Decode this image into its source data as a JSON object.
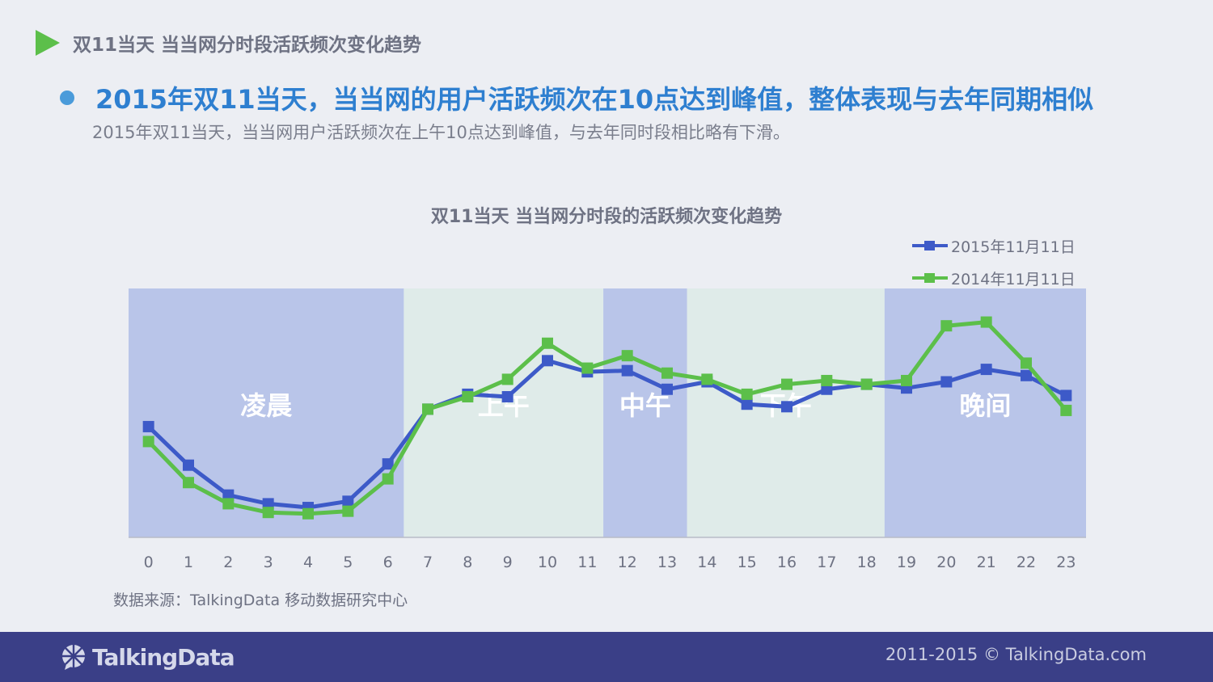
{
  "header": {
    "title": "双11当天 当当网分时段活跃频次变化趋势"
  },
  "headline": "2015年双11当天，当当网的用户活跃频次在10点达到峰值，整体表现与去年同期相似",
  "subline": "2015年双11当天，当当网用户活跃频次在上午10点达到峰值，与去年同时段相比略有下滑。",
  "source": "数据来源：TalkingData 移动数据研究中心",
  "footer": {
    "logo": "TalkingData",
    "copyright": "2011-2015 © TalkingData.com"
  },
  "colors": {
    "series_2015": "#3D5AC8",
    "series_2014": "#5CBF4A",
    "band_dark": "#B9C5E9",
    "band_light": "#DFEBE9",
    "accent": "#2E7FD0"
  },
  "chart_data": {
    "type": "line",
    "title": "双11当天 当当网分时段的活跃频次变化趋势",
    "xlabel": "",
    "ylabel": "",
    "x": [
      0,
      1,
      2,
      3,
      4,
      5,
      6,
      7,
      8,
      9,
      10,
      11,
      12,
      13,
      14,
      15,
      16,
      17,
      18,
      19,
      20,
      21,
      22,
      23
    ],
    "ylim": [
      0,
      100
    ],
    "series": [
      {
        "name": "2015年11月11日",
        "color": "#3D5AC8",
        "values": [
          44.5,
          29,
          17,
          13.5,
          12,
          14.5,
          29.5,
          51.5,
          57.5,
          56.5,
          71,
          66.5,
          67,
          59.5,
          62.5,
          53.5,
          52.5,
          59.5,
          61.5,
          60,
          62.5,
          67.5,
          65,
          57
        ]
      },
      {
        "name": "2014年11月11日",
        "color": "#5CBF4A",
        "values": [
          38.5,
          22,
          13.5,
          10,
          9.5,
          10.5,
          23.5,
          51.5,
          56.5,
          63.5,
          78,
          68,
          73,
          66,
          63.5,
          57.5,
          61.5,
          63,
          61.5,
          63,
          85,
          86.5,
          70,
          51
        ]
      }
    ],
    "periods": [
      {
        "label": "凌晨",
        "from": -0.5,
        "to": 6.4,
        "shade": "dark"
      },
      {
        "label": "上午",
        "from": 6.4,
        "to": 11.4,
        "shade": "light"
      },
      {
        "label": "中午",
        "from": 11.4,
        "to": 13.5,
        "shade": "dark"
      },
      {
        "label": "下午",
        "from": 13.5,
        "to": 18.45,
        "shade": "light"
      },
      {
        "label": "晚间",
        "from": 18.45,
        "to": 23.5,
        "shade": "dark"
      }
    ],
    "legend_position": "top-right",
    "grid": false
  }
}
